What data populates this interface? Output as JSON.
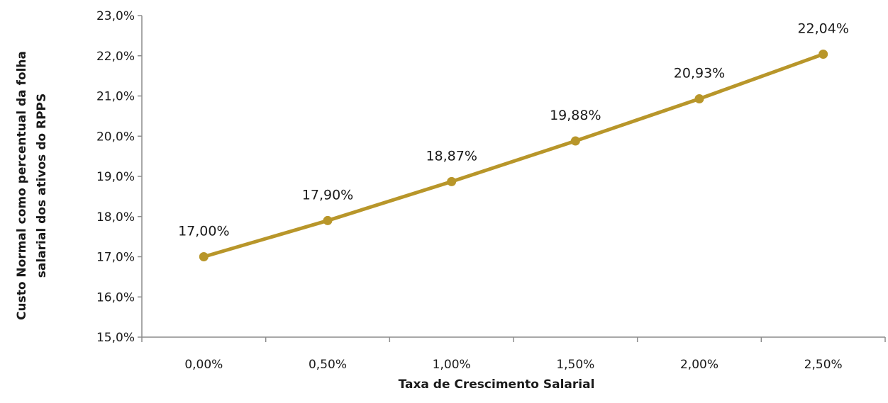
{
  "chart_data": {
    "type": "line",
    "title": "",
    "xlabel": "Taxa de Crescimento Salarial",
    "ylabel_lines": [
      "Custo Normal como percentual da folha",
      "salarial dos ativos do RPPS"
    ],
    "categories": [
      "0,00%",
      "0,50%",
      "1,00%",
      "1,50%",
      "2,00%",
      "2,50%"
    ],
    "series": [
      {
        "values": [
          17.0,
          17.9,
          18.87,
          19.88,
          20.93,
          22.04
        ],
        "data_labels": [
          "17,00%",
          "17,90%",
          "18,87%",
          "19,88%",
          "20,93%",
          "22,04%"
        ]
      }
    ],
    "ylim": [
      15.0,
      23.0
    ],
    "y_ticks": [
      15.0,
      16.0,
      17.0,
      18.0,
      19.0,
      20.0,
      21.0,
      22.0,
      23.0
    ],
    "y_tick_labels": [
      "15,0%",
      "16,0%",
      "17,0%",
      "18,0%",
      "19,0%",
      "20,0%",
      "21,0%",
      "22,0%",
      "23,0%"
    ],
    "grid": false,
    "legend": "none",
    "colors": {
      "series": "#b8962a",
      "axis": "#8c8c8c"
    }
  }
}
